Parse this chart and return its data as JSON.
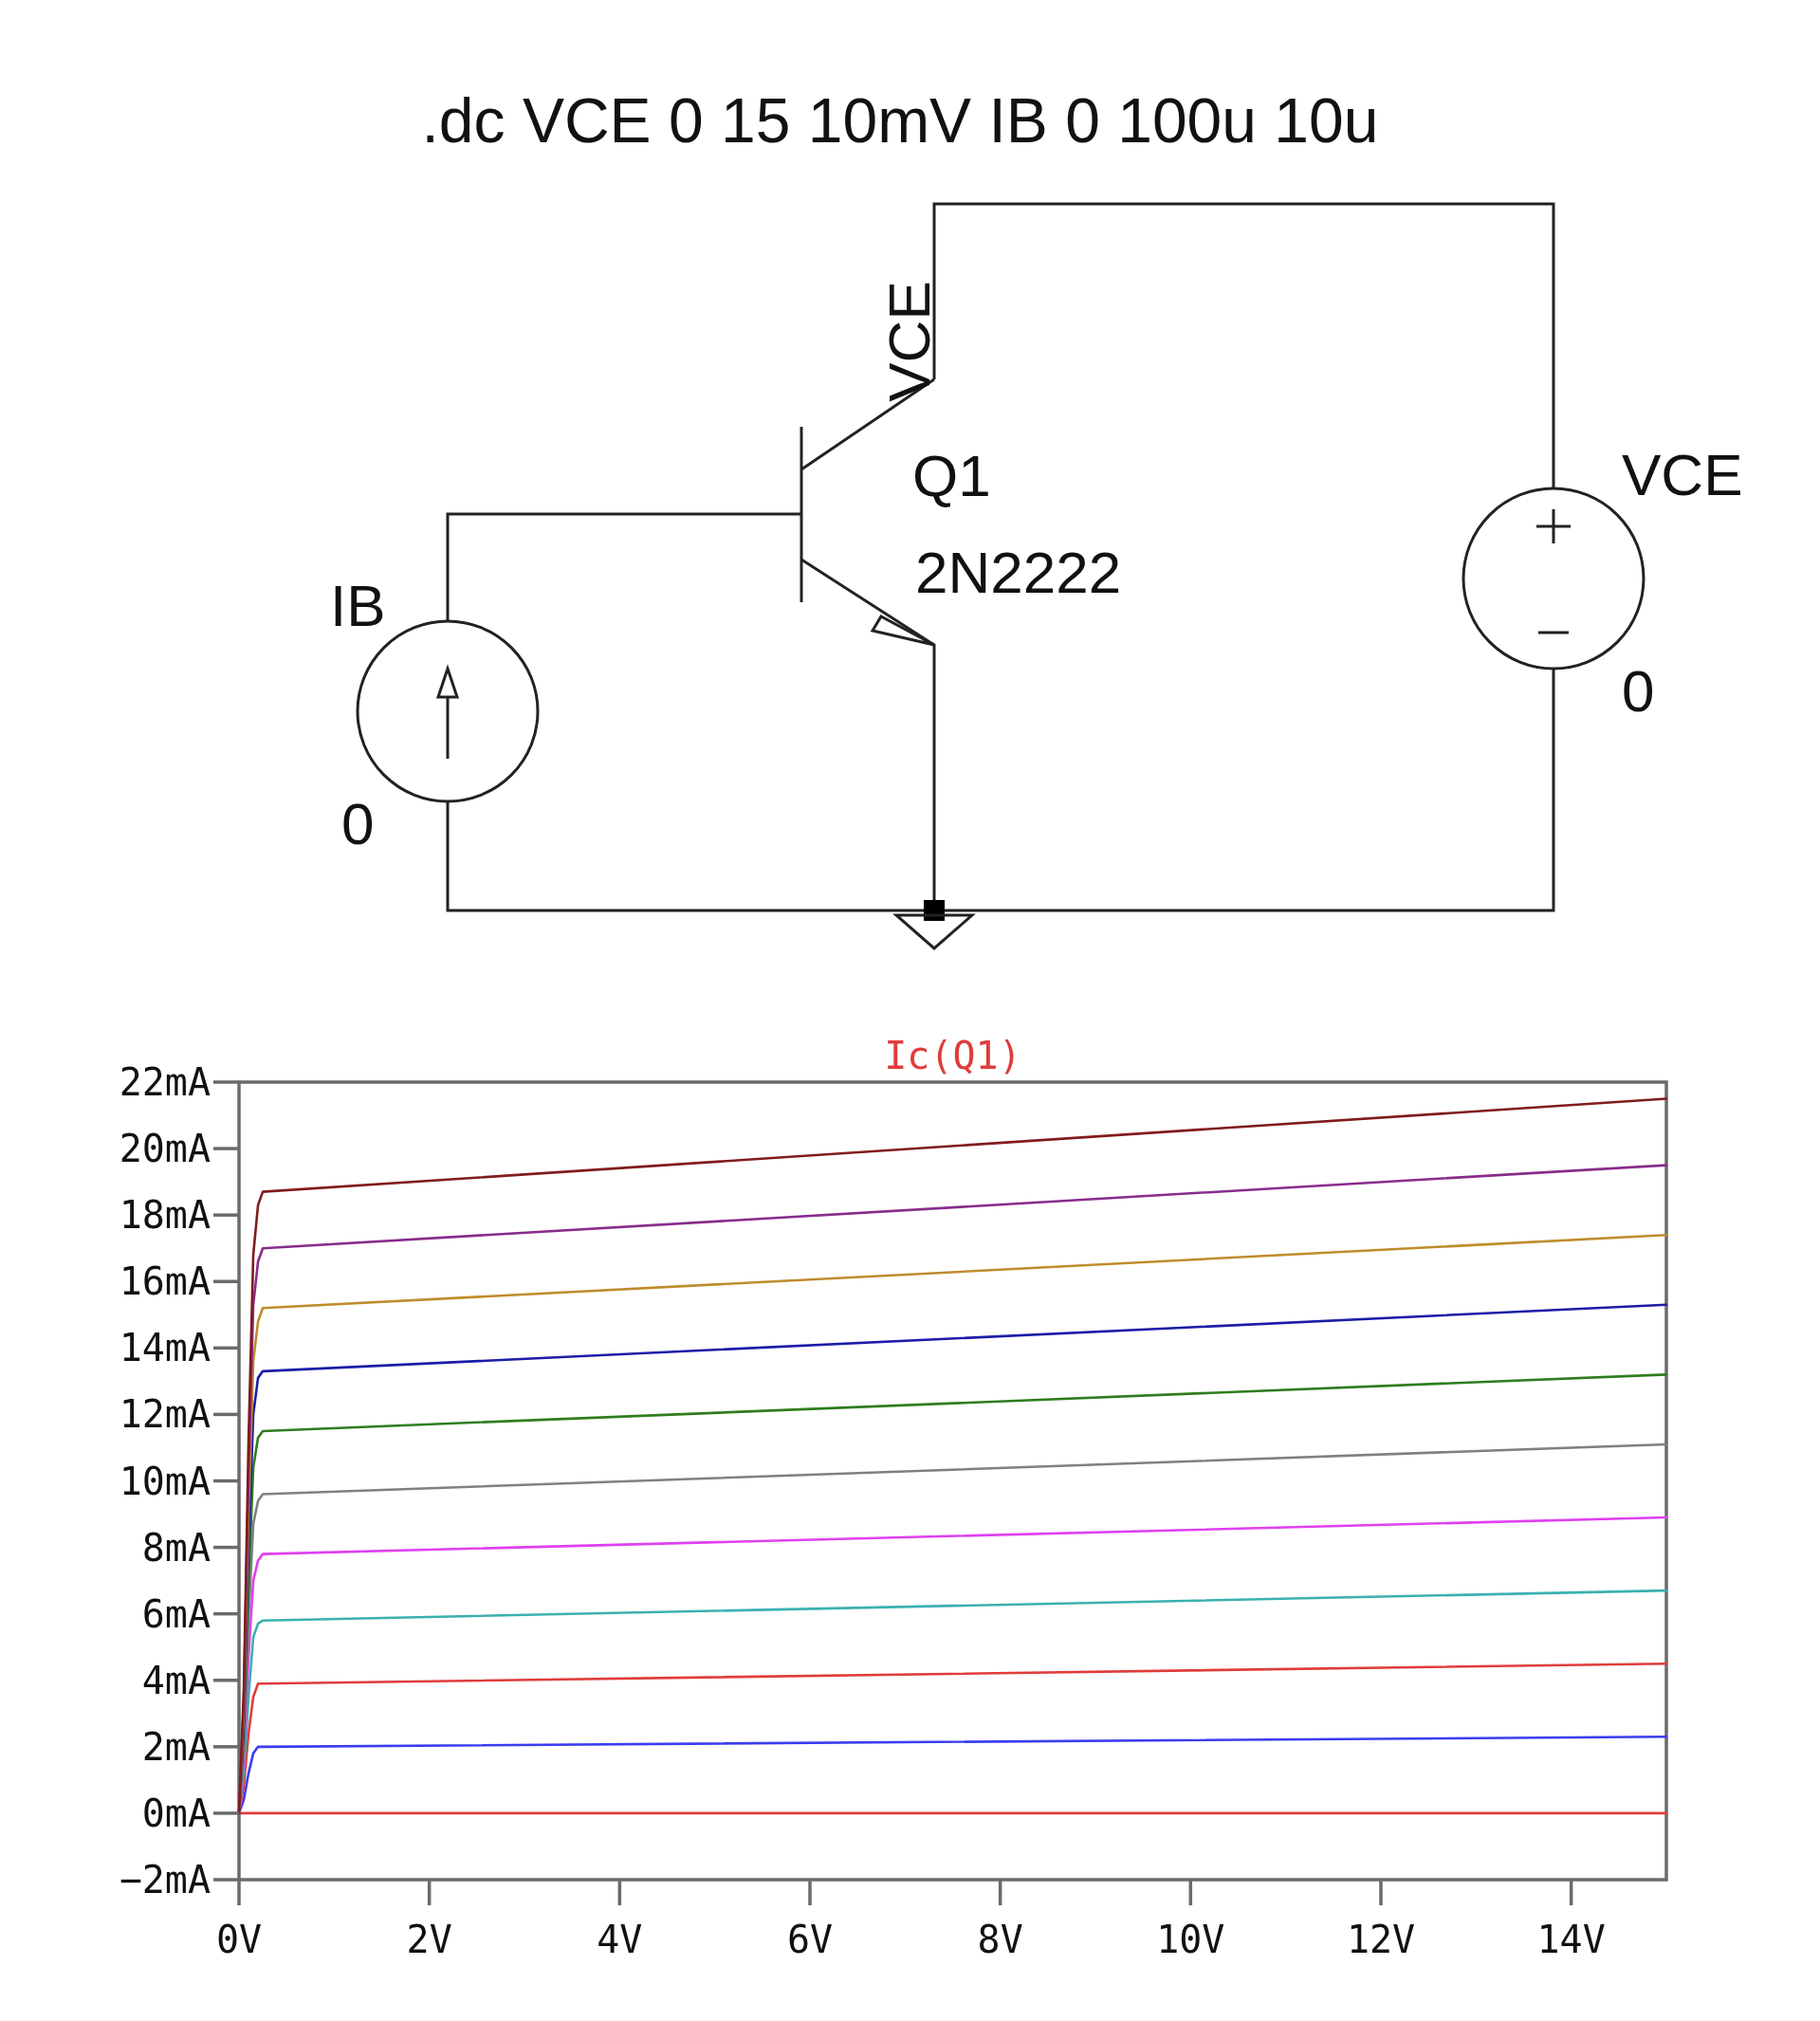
{
  "chart_data": {
    "type": "line",
    "annotations": [
      ".dc VCE 0 15 10mV IB 0 100u 10u",
      "VCE",
      "Q1",
      "2N2222",
      "IB",
      "0",
      "VCE",
      "0"
    ],
    "x": [
      0,
      0.05,
      0.1,
      0.15,
      0.2,
      0.25,
      15
    ],
    "series": [
      {
        "name": "Ic(Q1)",
        "color": "#e03c3c",
        "x": [
          0,
          15
        ],
        "values": [
          0,
          0
        ]
      },
      {
        "color": "#3c3cf0",
        "values": [
          0,
          0.4,
          1.2,
          1.8,
          2.0,
          2.0,
          2.3
        ]
      },
      {
        "color": "#e03c3c",
        "values": [
          0,
          0.8,
          2.4,
          3.5,
          3.9,
          3.9,
          4.5
        ]
      },
      {
        "color": "#3cb0b0",
        "values": [
          0,
          1.2,
          3.5,
          5.3,
          5.7,
          5.8,
          6.7
        ]
      },
      {
        "color": "#e040f0",
        "values": [
          0,
          1.6,
          4.7,
          7.0,
          7.6,
          7.8,
          8.9
        ]
      },
      {
        "color": "#808080",
        "values": [
          0,
          1.9,
          5.8,
          8.7,
          9.4,
          9.6,
          11.1
        ]
      },
      {
        "color": "#2e7d1e",
        "values": [
          0,
          2.3,
          6.9,
          10.4,
          11.3,
          11.5,
          13.2
        ]
      },
      {
        "color": "#1c1ca8",
        "values": [
          0,
          2.7,
          8.0,
          12.0,
          13.1,
          13.3,
          15.3
        ]
      },
      {
        "color": "#c08c2c",
        "values": [
          0,
          3.0,
          9.1,
          13.6,
          14.8,
          15.2,
          17.4
        ]
      },
      {
        "color": "#882c8c",
        "values": [
          0,
          3.4,
          10.2,
          15.3,
          16.6,
          17.0,
          19.5
        ]
      },
      {
        "color": "#801c1c",
        "values": [
          0,
          3.7,
          11.2,
          16.8,
          18.3,
          18.7,
          21.5
        ]
      }
    ],
    "xlim": [
      0,
      15
    ],
    "xticks": [
      {
        "value": 0,
        "label": "0V"
      },
      {
        "value": 2,
        "label": "2V"
      },
      {
        "value": 4,
        "label": "4V"
      },
      {
        "value": 6,
        "label": "6V"
      },
      {
        "value": 8,
        "label": "8V"
      },
      {
        "value": 10,
        "label": "10V"
      },
      {
        "value": 12,
        "label": "12V"
      },
      {
        "value": 14,
        "label": "14V"
      }
    ],
    "ylim": [
      -2,
      22
    ],
    "yticks": [
      {
        "value": -2,
        "label": "−2mA"
      },
      {
        "value": 0,
        "label": "0mA"
      },
      {
        "value": 2,
        "label": "2mA"
      },
      {
        "value": 4,
        "label": "4mA"
      },
      {
        "value": 6,
        "label": "6mA"
      },
      {
        "value": 8,
        "label": "8mA"
      },
      {
        "value": 10,
        "label": "10mA"
      },
      {
        "value": 12,
        "label": "12mA"
      },
      {
        "value": 14,
        "label": "14mA"
      },
      {
        "value": 16,
        "label": "16mA"
      },
      {
        "value": 18,
        "label": "18mA"
      },
      {
        "value": 20,
        "label": "20mA"
      },
      {
        "value": 22,
        "label": "22mA"
      }
    ],
    "legend": "top"
  }
}
